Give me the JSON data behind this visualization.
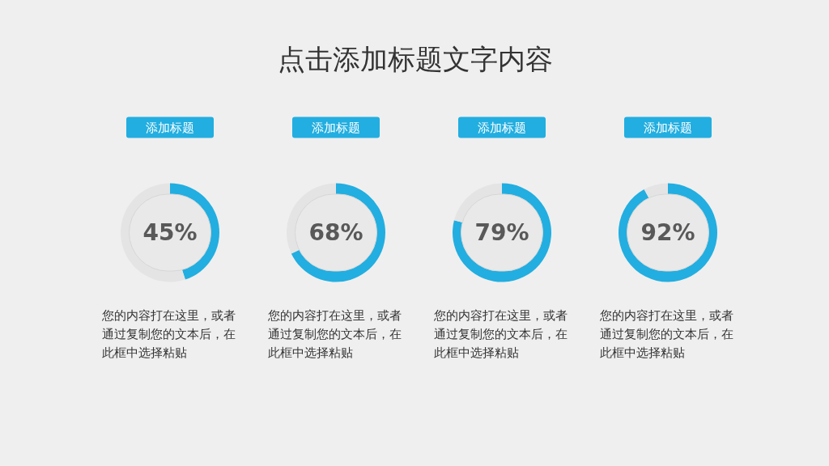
{
  "chart_data": [
    {
      "type": "other",
      "title": "点击添加标题文字内容"
    },
    {
      "type": "donut",
      "title": "添加标题",
      "categories": [
        null,
        null
      ],
      "values": [
        45,
        55
      ],
      "colors": [
        "#22aee0",
        "#e4e4e4"
      ],
      "value_labels": [
        "45%",
        null
      ],
      "annotations": [
        "您的内容打在这里，或者通过复制您的文本后，在此框中选择粘贴"
      ]
    },
    {
      "type": "donut",
      "title": "添加标题",
      "categories": [
        null,
        null
      ],
      "values": [
        68,
        32
      ],
      "colors": [
        "#22aee0",
        "#e4e4e4"
      ],
      "value_labels": [
        "68%",
        null
      ],
      "annotations": [
        "您的内容打在这里，或者通过复制您的文本后，在此框中选择粘贴"
      ]
    },
    {
      "type": "donut",
      "title": "添加标题",
      "categories": [
        null,
        null
      ],
      "values": [
        79,
        21
      ],
      "colors": [
        "#22aee0",
        "#e4e4e4"
      ],
      "value_labels": [
        "79%",
        null
      ],
      "annotations": [
        "您的内容打在这里，或者通过复制您的文本后，在此框中选择粘贴"
      ]
    },
    {
      "type": "donut",
      "title": "添加标题",
      "categories": [
        null,
        null
      ],
      "values": [
        92,
        8
      ],
      "colors": [
        "#22aee0",
        "#e4e4e4"
      ],
      "value_labels": [
        "92%",
        null
      ],
      "annotations": [
        "您的内容打在这里，或者通过复制您的文本后，在此框中选择粘贴"
      ]
    }
  ]
}
